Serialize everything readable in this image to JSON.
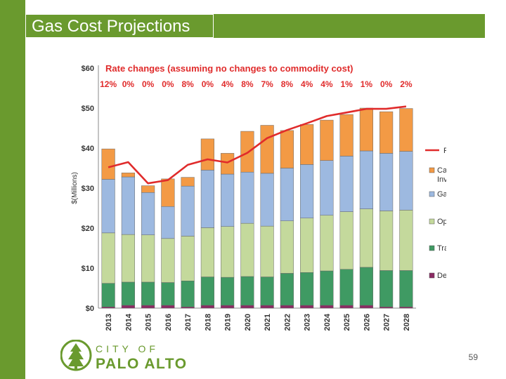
{
  "slide": {
    "title": "Gas Cost Projections",
    "page_number": "59"
  },
  "logo": {
    "city": "CITY OF",
    "name": "PALO ALTO"
  },
  "colors": {
    "brand_green": "#6a9a2e",
    "capital": "#f39a45",
    "gas_supply": "#9db9e0",
    "operations": "#c4d99c",
    "transfers": "#3f9a63",
    "debt": "#8b2a63",
    "revenue": "#e02b2b",
    "rate_text": "#e02b2b"
  },
  "chart_data": {
    "type": "bar",
    "stacked": true,
    "title": "Rate changes (assuming no changes to commodity cost)",
    "xlabel": "",
    "ylabel": "$(Millions)",
    "ylim": [
      0,
      60
    ],
    "yticks": [
      0,
      10,
      20,
      30,
      40,
      50,
      60
    ],
    "ytick_labels": [
      "$0",
      "$10",
      "$20",
      "$30",
      "$40",
      "$50",
      "$60"
    ],
    "categories": [
      "2013",
      "2014",
      "2015",
      "2016",
      "2017",
      "2018",
      "2019",
      "2020",
      "2021",
      "2022",
      "2023",
      "2024",
      "2025",
      "2026",
      "2027",
      "2028"
    ],
    "rate_changes": [
      "12%",
      "0%",
      "0%",
      "0%",
      "8%",
      "0%",
      "4%",
      "8%",
      "7%",
      "8%",
      "4%",
      "4%",
      "1%",
      "1%",
      "0%",
      "2%"
    ],
    "series": [
      {
        "name": "Debt Service",
        "color": "#8b2a63",
        "values": [
          0.3,
          0.7,
          0.7,
          0.7,
          0.3,
          0.7,
          0.7,
          0.7,
          0.7,
          0.7,
          0.7,
          0.7,
          0.7,
          0.7,
          0.3,
          0.3
        ]
      },
      {
        "name": "Transfers",
        "color": "#3f9a63",
        "values": [
          5.9,
          5.8,
          5.8,
          5.7,
          6.5,
          7.1,
          7.0,
          7.2,
          7.1,
          8.0,
          8.2,
          8.6,
          9.0,
          9.5,
          9.1,
          9.1
        ]
      },
      {
        "name": "Operations",
        "color": "#c4d99c",
        "values": [
          12.6,
          11.9,
          11.8,
          11.0,
          11.2,
          12.3,
          12.7,
          13.3,
          12.7,
          13.1,
          13.6,
          13.9,
          14.4,
          14.6,
          14.9,
          15.1
        ]
      },
      {
        "name": "Gas Supply",
        "color": "#9db9e0",
        "values": [
          13.4,
          14.4,
          10.6,
          8.0,
          12.5,
          14.4,
          13.1,
          12.8,
          13.2,
          13.2,
          13.4,
          13.7,
          13.9,
          14.5,
          14.4,
          14.7
        ]
      },
      {
        "name": "Capital Investment",
        "color": "#f39a45",
        "values": [
          7.6,
          1.0,
          1.7,
          6.9,
          2.2,
          7.8,
          5.2,
          10.2,
          12.0,
          9.4,
          10.0,
          10.1,
          10.4,
          10.7,
          10.4,
          10.7
        ]
      }
    ],
    "line_series": {
      "name": "Revenue",
      "color": "#e02b2b",
      "values": [
        35.2,
        36.5,
        31.2,
        32.0,
        35.8,
        37.2,
        36.4,
        38.8,
        42.5,
        44.5,
        46.2,
        48.0,
        48.9,
        49.8,
        49.8,
        50.4
      ]
    },
    "legend": {
      "placement": "right",
      "items": [
        {
          "label": "Revenue",
          "kind": "line",
          "color": "#e02b2b"
        },
        {
          "label": "Capital Investment",
          "kind": "box",
          "color": "#f39a45"
        },
        {
          "label": "Gas Supply",
          "kind": "box",
          "color": "#9db9e0"
        },
        {
          "label": "Operations",
          "kind": "box",
          "color": "#c4d99c"
        },
        {
          "label": "Transfers",
          "kind": "box",
          "color": "#3f9a63"
        },
        {
          "label": "Debt Service",
          "kind": "box",
          "color": "#8b2a63"
        }
      ]
    }
  }
}
